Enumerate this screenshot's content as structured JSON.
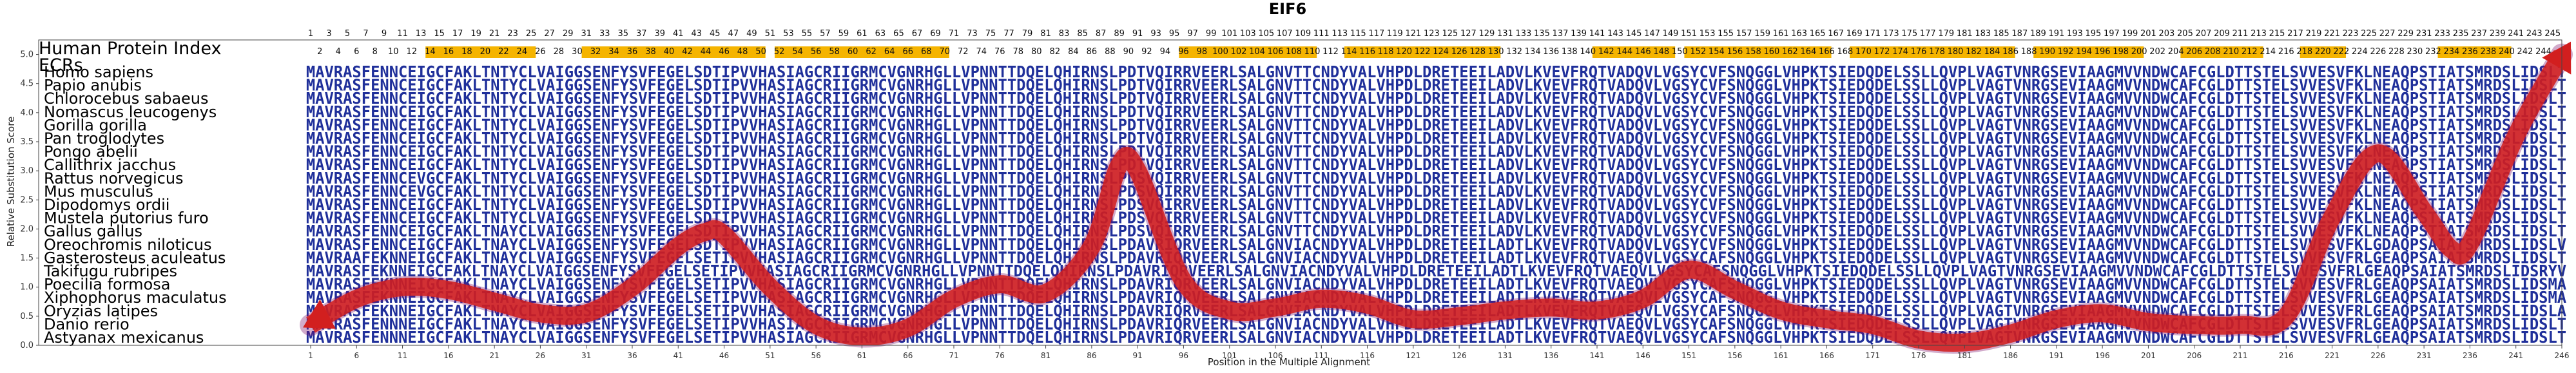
{
  "chart_data": {
    "type": "line",
    "title": "EIF6",
    "xlabel": "Position in the Multiple Alignment",
    "ylabel": "Relative Substitution Score",
    "xlim": [
      1,
      246
    ],
    "ylim": [
      0,
      5.25
    ],
    "yticks": [
      "0.0",
      "0.5",
      "1.0",
      "1.5",
      "2.0",
      "2.5",
      "3.0",
      "3.5",
      "4.0",
      "4.5",
      "5.0"
    ],
    "xticks": [
      "1",
      "6",
      "11",
      "16",
      "21",
      "26",
      "31",
      "36",
      "41",
      "46",
      "51",
      "56",
      "61",
      "66",
      "71",
      "76",
      "81",
      "86",
      "91",
      "96",
      "101",
      "106",
      "111",
      "116",
      "121",
      "126",
      "131",
      "136",
      "141",
      "146",
      "151",
      "156",
      "161",
      "166",
      "171",
      "176",
      "181",
      "186",
      "191",
      "196",
      "201",
      "206",
      "211",
      "216",
      "221",
      "226",
      "231",
      "236",
      "241",
      "246"
    ],
    "hpi_label": "Human Protein Index",
    "ecr_label": "ECRs",
    "hpi_top": [
      "1",
      "3",
      "5",
      "7",
      "9",
      "11",
      "13",
      "15",
      "17",
      "19",
      "21",
      "23",
      "25",
      "27",
      "29",
      "31",
      "33",
      "35",
      "37",
      "39",
      "41",
      "43",
      "45",
      "47",
      "49",
      "51",
      "53",
      "55",
      "57",
      "59",
      "61",
      "63",
      "65",
      "67",
      "69",
      "71",
      "73",
      "75",
      "77",
      "79",
      "81",
      "83",
      "85",
      "87",
      "89",
      "91",
      "93",
      "95",
      "97",
      "99",
      "101",
      "103",
      "105",
      "107",
      "109",
      "111",
      "113",
      "115",
      "117",
      "119",
      "121",
      "123",
      "125",
      "127",
      "129",
      "131",
      "133",
      "135",
      "137",
      "139",
      "141",
      "143",
      "145",
      "147",
      "149",
      "151",
      "153",
      "155",
      "157",
      "159",
      "161",
      "163",
      "165",
      "167",
      "169",
      "171",
      "173",
      "175",
      "177",
      "179",
      "181",
      "183",
      "185",
      "187",
      "189",
      "191",
      "193",
      "195",
      "197",
      "199",
      "201",
      "203",
      "205",
      "207",
      "209",
      "211",
      "213",
      "215",
      "217",
      "219",
      "221",
      "223",
      "225",
      "227",
      "229",
      "231",
      "233",
      "235",
      "237",
      "239",
      "241",
      "243",
      "245"
    ],
    "hpi_bottom": [
      "2",
      "4",
      "6",
      "8",
      "10",
      "12",
      "14",
      "16",
      "18",
      "20",
      "22",
      "24",
      "26",
      "28",
      "30",
      "32",
      "34",
      "36",
      "38",
      "40",
      "42",
      "44",
      "46",
      "48",
      "50",
      "52",
      "54",
      "56",
      "58",
      "60",
      "62",
      "64",
      "66",
      "68",
      "70",
      "72",
      "74",
      "76",
      "78",
      "80",
      "82",
      "84",
      "86",
      "88",
      "90",
      "92",
      "94",
      "96",
      "98",
      "100",
      "102",
      "104",
      "106",
      "108",
      "110",
      "112",
      "114",
      "116",
      "118",
      "120",
      "122",
      "124",
      "126",
      "128",
      "130",
      "132",
      "134",
      "136",
      "138",
      "140",
      "142",
      "144",
      "146",
      "148",
      "150",
      "152",
      "154",
      "156",
      "158",
      "160",
      "162",
      "164",
      "166",
      "168",
      "170",
      "172",
      "174",
      "176",
      "178",
      "180",
      "182",
      "184",
      "186",
      "188",
      "190",
      "192",
      "194",
      "196",
      "198",
      "200",
      "202",
      "204",
      "206",
      "208",
      "210",
      "212",
      "214",
      "216",
      "218",
      "220",
      "222",
      "224",
      "226",
      "228",
      "230",
      "232",
      "234",
      "236",
      "238",
      "240",
      "242",
      "244"
    ],
    "ecr_regions": [
      [
        14,
        25
      ],
      [
        31,
        50
      ],
      [
        52,
        70
      ],
      [
        96,
        110
      ],
      [
        114,
        130
      ],
      [
        141,
        149
      ],
      [
        151,
        166
      ],
      [
        169,
        186
      ],
      [
        189,
        200
      ],
      [
        205,
        213
      ],
      [
        218,
        222
      ],
      [
        233,
        240
      ]
    ],
    "species": [
      {
        "name": "Homo sapiens",
        "seq": "MAVRASFENNCEIGCFAKLTNTYCLVAIGGSENFYSVFEGELSDTIPVVHASIAGCRIIGRMCVGNRHGLLVPNNTTDQELQHIRNSLPDTVQIRRVEERLSALGNVTTCNDYVALVHPDLDRETEEILADVLKVEVFRQTVADQVLVGSYCVFSNQGGLVHPKTSIEDQDELSSLLQVPLVAGTVNRGSEVIAAGMVVNDWCAFCGLDTTSTELSVVESVFKLNEAQPSTIATSMRDSLIDSLT"
      },
      {
        "name": "Papio anubis",
        "seq": "MAVRASFENNCEIGCFAKLTNTYCLVAIGGSENFYSVFEGELSDTIPVVHASIAGCRIIGRMCVGNRHGLLVPNNTTDQELQHIRNSLPDTVQIRRVEERLSALGNVTTCNDYVALVHPDLDRETEEILADVLKVEVFRQTVADQVLVGSYCVFSNQGGLVHPKTSIEDQDELSSLLQVPLVAGTVNRGSEVIAAGMVVNDWCAFCGLDTTSTELSVVESVFKLNEAQPSTIATSMRDSLIDSLT"
      },
      {
        "name": "Chlorocebus sabaeus",
        "seq": "MAVRASFENNCEIGCFAKLTNTYCLVAIGGSENFYSVFEGELSDTIPVVHASIAGCRIIGRMCVGNRHGLLVPNNTTDQELQHIRNSLPDTVQIRRVEERLSALGNVTTCNDYVALVHPDLDRETEEILADVLKVEVFRQTVADQVLVGSYCVFSNQGGLVHPKTSIEDQDELSSLLQVPLVAGTVNRGSEVIAAGMVVNDWCAFCGLDTTSTELSVVESVFKLNEAQPSTIATSMRDSLIDSLT"
      },
      {
        "name": "Nomascus leucogenys",
        "seq": "MAVRASFENNCEIGCFAKLTNTYCLVAIGGSENFYSVFEGELSDTIPVVHASIAGCRIIGRMCVGNRHGLLVPNNTTDQELQHIRNSLPDTVQIRRVEERLSALGNVTTCNDYVALVHPDLDRETEEILADVLKVEVFRQTVADQVLVGSYCVFSNQGGLVHPKTSIEDQDELSSLLQVPLVAGTVNRGSEVIAAGMVVNDWCAFCGLDTTSTELSVVESVFKLNEAQPSTIATSMRDSLIDSLT"
      },
      {
        "name": "Gorilla gorilla",
        "seq": "MAVRASFENNCEIGCFAKLTNTYCLVAIGGSENFYSVFEGELSDTIPVVHASIAGCRIIGRMCVGNRHGLLVPNNTTDQELQHIRNSLPDTVQIRRVEERLSALGNVTTCNDYVALVHPDLDRETEEILADVLKVEVFRQTVADQVLVGSYCVFSNQGGLVHPKTSIEDQDELSSLLQVPLVAGTVNRGSEVIAAGMVVNDWCAFCGLDTTSTELSVVESVFKLNEAQPSTIATSMRDSLIDSLT"
      },
      {
        "name": "Pan troglodytes",
        "seq": "MAVRASFENNCEIGCFAKLTNTYCLVAIGGSENFYSVFEGELSDTIPVVHASIAGCRIIGRMCVGNRHGLLVPNNTTDQELQHIRNSLPDTVQIRRVEERLSALGNVTTCNDYVALVHPDLDRETEEILADVLKVEVFRQTVADQVLVGSYCVFSNQGGLVHPKTSIEDQDELSSLLQVPLVAGTVNRGSEVIAAGMVVNDWCAFCGLDTTSTELSVVESVFKLNEAQPSTIATSMRDSLIDSLT"
      },
      {
        "name": "Pongo abelii",
        "seq": "MAVRASFENNCEIGCFAKLTNTYCLVAIGGSENFYSVFEGELSDTIPVVHASIAGCRIIGRMCVGNRHGLLVPNNTTDQELQHIRNSLPDTVQIRRVEERLSALGNVTTCNDYVALVHPDLDRETEEILADVLKVEVFRQTVADQVLVGSYCVFSNQGGLVHPKTSIEDQDELSSLLQVPLVAGTVNRGSEVIAAGMVVNDWCAFCGLDTTSTELSVVESVFKLNEAQPSTIATSMRDSLIDSLT"
      },
      {
        "name": "Callithrix jacchus",
        "seq": "MAVRASFENNCEIGCFAKLTNTYCLVAIGGSENFYSVFEGELSDTIPVVHASIAGCRIIGRMCVGNRHGLLVPNNTTDQELQHIRNSLPDTVQIRRVEERLSALGNVTTCNDYVALVHPDLDRETEEILADVLKVEVFRQTVADQVLVGSYCVFSNQGGLVHPKTSIEDQDELSSLLQVPLVAGTVNRGSEVIAAGMVVNDWCAFCGLDTTSTELSVVESVFKLNEAQPSTIATSMRDSLIDSLT"
      },
      {
        "name": "Rattus norvegicus",
        "seq": "MAVRASFENNCEVGCFAKLTNTYCLVAIGGSENFYSVFEGELSDTIPVVHASIAGCRIIGRMCVGNRHGLLVPNNTTDQELQHIRNSLPDSVQIRRVEERLSALGNVTTCNDYVALVHPDLDRETEEILADVLKVEVFRQTVADQVLVGSYCVFSNQGGLVHPKTSIEDQDELSSLLQVPLVAGTVNRGSEVIAAGMVVNDWCAFCGLDTTSTELSVVESVFKLNEAQPSTIATSMRDSLIDSLT"
      },
      {
        "name": "Mus musculus",
        "seq": "MAVRASFENNCEVGCFAKLTNTYCLVAIGGSENFYSVFEGELSDTIPVVHASIAGCRIIGRMCVGNRHGLLVPNNTTDQELQHIRNSLPDSVQIRRVEERLSALGNVTTCNDYVALVHPDLDRETEEILADVLKVEVFRQTVADQVLVGSYCVFSNQGGLVHPKTSIEDQDELSSLLQVPLVAGTVNRGSEVIAAGMVVNDWCAFCGLDTTSTELSVVESVFKLNEAQPSTIATSMRDSLIDSLT"
      },
      {
        "name": "Dipodomys ordii",
        "seq": "MAVRASFENNCEIGCFAKLTNTYCLVAIGGSENFYSVFEGELSDTIPVVHASIAGCRIIGRMCVGNRHGLLVPNNTTDQELQHIRNSLPDSVQIRRVEERLSALGNVTTCNDYVALVHPDLDRETEEILADVLKVEVFRQTVADQVLVGSYCVFSNQGGLVHPKTSIEDQDELSSLLQVPLVAGTVNRGSEVIAAGMVVNDWCAFCGLDTTSTELSVVESVFKLNEAQPSTIATSMRDSLIDSLT"
      },
      {
        "name": "Mustela putorius furo",
        "seq": "MAVRASFENNCEIGCFAKLTNTYCLVAIGGSENFYSVFEGELSDTIPVVHASIAGCRIIGRMCVGNRHGLLVPNNTTDQELQHIRNSLPDSVQIRRVEERLSALGNVTTCNDYVALVHPDLDRETEEILADVLKVEVFRQTVADQVLVGSYCVFSNQGGLVHPKTSIEDQDELSSLLQVPLVAGTVNRGSEVIAAGMVVNDWCAFCGLDTTSTELSVVESVFKLNEAQPSTIATSMRDSLIDSLT"
      },
      {
        "name": "Gallus gallus",
        "seq": "MAVRASFENNCEIGCFAKLTNAYCLVAIGGSENFYSVFEGELSDTIPVVHASIAGCRIIGRMCVGNRHGLLVPNNTTDQELQHIRNSLPDSVQIRRVEERLSALGNVTTCNDYVALVHPDLDRETEEILADVLKVEVFRQTVADQVLVGSYCVFSNQGGLVHPKTSIEDQDELSSLLQVPLVAGTVNRGSEVIAAGMVVNDWCAFCGLDTTSTELSVVESVFKLNEAQPSTIATSMRDSLIDSLT"
      },
      {
        "name": "Oreochromis niloticus",
        "seq": "MAVRASFENNCEIGCFAKLTNAYCLVAIGGSENFYSVFEGELSDTIPVVHASIAGCRIIGRMCVGNRHGLLVPNNTTDQELQHIRNSLPDAVRIQRVEERLSALGNVIACNDYVALVHPDLDRETEEILADTLKVEVFRQTVADQVLVGSYCVFSNQGGLVHPKTSIEDQDELSSLLQVPLVAGTVNRGSEVIAAGMVVNDWCAFCGLDTTSTELSVVESVFKLGDAQPSAIATSMRDSLIDSLV"
      },
      {
        "name": "Gasterosteus aculeatus",
        "seq": "MAVRAAFEKNNEIGCFAKLTNAYCLVAIGGSENFYSVFEGELSETIPVVHASIAGCRIIGRMCVGNRHGLLVPNNTTDQELQHIRNSLPDAVRIQRVEERLSALGNVIACNDYVALVHPDLDRETEEILADTLKVEVFRQTVAEQVLVGSYCAFSNQGGLVHPKTSIEDQDELSSLLQVPLVAGTVNRGSEVIAAGMVVNDWCAFCGLDTTSTELSVVESVFRLGEAQPSAIATSMRDSLIDSLT"
      },
      {
        "name": "Takifugu rubripes",
        "seq": "MAVRASFEKNNEIGCFAKLTNAYCLVAIGGSENFYSVFEGELSETIPVVHASIAGCRIIGRMCVGNRHGLLVPNNTTDQELQHIRNSLPDAVRIQRVEERLSALGNVIACNDYVALVHPDLDRETEEILADTLKVEVFRQTVAEQVLVGSYCAFSNQGGLVHPKTSIEDQDELSSLLQVPLVAGTVNRGSEVIAAGMVVNDWCAFCGLDTTSTELSVVESVFRLGEAQPSAIATSMRDSLIDSRYV"
      },
      {
        "name": "Poecilia formosa",
        "seq": "MAVRASFEKNNEIGCFAKLTNAYCLVAIGGSENFYSVFEGELSETIPVVHASIAGCRIIGRMCVGNRHGLLVPNNTTDQELQHIRNSLPDAVRIQRVEERLSALGNVIACNDYVALVHPDLDRETEEILADTLKVEVFRQTVAEQVLVGSYCAFSNQGGLVHPKTSIEDQDELSSLLQVPLVAGTVNRGSEVIAAGMVVNDWCAFCGLDTTSTELSVVESVFRLGEAQPSAIATSMRDSLIDSMA"
      },
      {
        "name": "Xiphophorus maculatus",
        "seq": "MAVRASFEKNNEIGCFAKLTNAYCLVAIGGSENFYSVFEGELSETIPVVHASIAGCRIIGRMCVGNRHGLLVPNNTTDQELQHIRNSLPDAVRIQRVEERLSALGNVIACNDYVALVHPDLDRETEEILADTLKVEVFRQTVAEQVLVGSYCAFSNQGGLVHPKTSIEDQDELSSLLQVPLVAGTVNRGSEVIAAGMVVNDWCAFCGLDTTSTELSVVESVFRLGEAQPSAIATSMRDSLIDSMA"
      },
      {
        "name": "Oryzias latipes",
        "seq": "MAVRASFEKNNEIGCFAKLTNAYCLVAIGGSENFYSVFEGELSETIPVVHASIAGCRIIGRMCVGNRHGLLVPNNTTDQELQHIRNSLPDAVRIQRVEERLSALGNVIACNDYVALVHPDLDRETEEILADTLKVEVFRQTVAEQVLVGSYCAFSNQGGLVHPKTSIEDQDELSSLLQVPLVAGTVNRGSEVIAAGMVVNDWCAFCGLDTTSTELSVVESVFRLGEAQPSAIATSMRDSLIDSLA"
      },
      {
        "name": "Danio rerio",
        "seq": "MAVRASFENNNEIGCFAKLTNAYCLVAIGGSENFYSVFEGELSETIPVVHASIAGCRIIGRMCVGNRHGLLVPNNTTDQELQHIRNSLPDAVRIQRVEERLSALGNVIACNDYVALVHPDLDRETEEILADTLKVEVFRQTVAEQVLVGSYCAFSNQGGLVHPKTSIEDQDELSSLLQVPLVAGTVNRGSEVIAAGMVVNDWCAFCGLDTTSTELSVVESVFRLGEAQPSAIATSMRDSLIDSLT"
      },
      {
        "name": "Astyanax mexicanus",
        "seq": "MAVRASFENNNEIGCFAKLTNAYCLVAIGGSENFYSVFEGELSETIPVVHASIAGCRIIGRMCVGNRHGLLVPNNTTDQELQHIRNSLPDAVRIQRVEERLSALGNVIACNDYVALVHPDLDRETEEILADTLKVEVFRQTVAEQVLVGSYCAFSNQGGLVHPKTSIEDQDELSSLLQVPLVAGTVNRGSEVIAAGMVVNDWCAFCGLDTTSTELSVVESVFRLGEAQPSAIATSMRDSLIDSLT"
      }
    ],
    "series": [
      {
        "x": [
          1,
          6,
          11,
          16,
          21,
          26,
          31,
          36,
          41,
          44,
          46,
          51,
          56,
          61,
          66,
          71,
          76,
          81,
          86,
          89,
          91,
          96,
          101,
          106,
          111,
          116,
          121,
          126,
          131,
          136,
          141,
          146,
          151,
          156,
          161,
          166,
          171,
          176,
          181,
          186,
          191,
          196,
          201,
          206,
          211,
          216,
          221,
          226,
          231,
          234,
          236,
          241,
          246
        ],
        "y": [
          0.35,
          0.8,
          1.0,
          0.95,
          0.75,
          0.55,
          0.55,
          1.0,
          1.7,
          1.95,
          1.9,
          1.0,
          0.35,
          0.15,
          0.3,
          0.8,
          1.05,
          0.9,
          1.7,
          3.1,
          3.0,
          1.1,
          0.6,
          0.65,
          0.8,
          0.7,
          0.45,
          0.5,
          0.6,
          0.65,
          0.6,
          0.8,
          1.3,
          0.95,
          0.6,
          0.45,
          0.35,
          0.1,
          0.05,
          0.2,
          0.45,
          0.55,
          0.4,
          0.35,
          0.35,
          0.5,
          2.2,
          3.3,
          2.3,
          1.65,
          1.75,
          3.6,
          5.0
        ]
      }
    ],
    "colors": {
      "curve": "#d21f1f",
      "curve_shadow": "#7a0f6a",
      "seq_dark": "#1f2f9a",
      "seq_light": "#4d8c8f",
      "ecr": "#f5b400",
      "axis": "#444444"
    }
  }
}
